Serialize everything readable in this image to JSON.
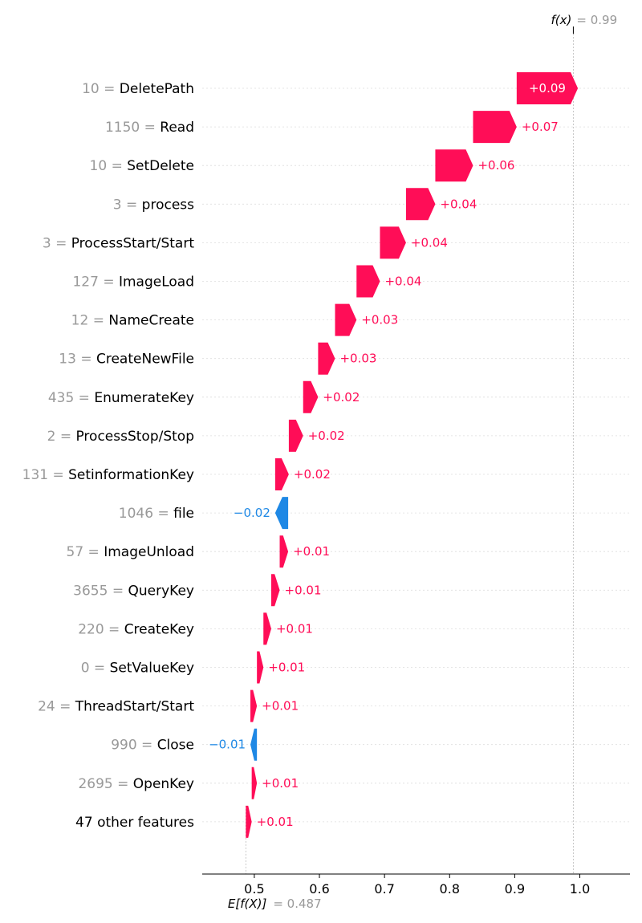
{
  "chart_data": {
    "type": "waterfall",
    "fx_label": "f(x)",
    "fx_value": "0.99",
    "fx": 0.99,
    "base_label": "E[f(X)]",
    "base_value": "0.487",
    "base": 0.487,
    "xlim": [
      0.42,
      1.077
    ],
    "x_ticks": [
      {
        "value": 0.5,
        "label": "0.5"
      },
      {
        "value": 0.6,
        "label": "0.6"
      },
      {
        "value": 0.7,
        "label": "0.7"
      },
      {
        "value": 0.8,
        "label": "0.8"
      },
      {
        "value": 0.9,
        "label": "0.9"
      },
      {
        "value": 1.0,
        "label": "1.0"
      }
    ],
    "features": [
      {
        "value": "10",
        "name": "DeletePath",
        "contribution": 0.094,
        "label": "+0.09"
      },
      {
        "value": "1150",
        "name": "Read",
        "contribution": 0.067,
        "label": "+0.07"
      },
      {
        "value": "10",
        "name": "SetDelete",
        "contribution": 0.058,
        "label": "+0.06"
      },
      {
        "value": "3",
        "name": "process",
        "contribution": 0.045,
        "label": "+0.04"
      },
      {
        "value": "3",
        "name": "ProcessStart/Start",
        "contribution": 0.04,
        "label": "+0.04"
      },
      {
        "value": "127",
        "name": "ImageLoad",
        "contribution": 0.036,
        "label": "+0.04"
      },
      {
        "value": "12",
        "name": "NameCreate",
        "contribution": 0.033,
        "label": "+0.03"
      },
      {
        "value": "13",
        "name": "CreateNewFile",
        "contribution": 0.026,
        "label": "+0.03"
      },
      {
        "value": "435",
        "name": "EnumerateKey",
        "contribution": 0.023,
        "label": "+0.02"
      },
      {
        "value": "2",
        "name": "ProcessStop/Stop",
        "contribution": 0.022,
        "label": "+0.02"
      },
      {
        "value": "131",
        "name": "SetinformationKey",
        "contribution": 0.021,
        "label": "+0.02"
      },
      {
        "value": "1046",
        "name": "file",
        "contribution": -0.02,
        "label": "−0.02"
      },
      {
        "value": "57",
        "name": "ImageUnload",
        "contribution": 0.013,
        "label": "+0.01"
      },
      {
        "value": "3655",
        "name": "QueryKey",
        "contribution": 0.013,
        "label": "+0.01"
      },
      {
        "value": "220",
        "name": "CreateKey",
        "contribution": 0.012,
        "label": "+0.01"
      },
      {
        "value": "0",
        "name": "SetValueKey",
        "contribution": 0.01,
        "label": "+0.01"
      },
      {
        "value": "24",
        "name": "ThreadStart/Start",
        "contribution": 0.01,
        "label": "+0.01"
      },
      {
        "value": "990",
        "name": "Close",
        "contribution": -0.01,
        "label": "−0.01"
      },
      {
        "value": "2695",
        "name": "OpenKey",
        "contribution": 0.008,
        "label": "+0.01"
      },
      {
        "value": "",
        "name": "47 other features",
        "contribution": 0.009,
        "label": "+0.01"
      }
    ],
    "colors": {
      "positive": "#ff0d57",
      "negative": "#1e88e5",
      "value_text": "#999999"
    }
  }
}
